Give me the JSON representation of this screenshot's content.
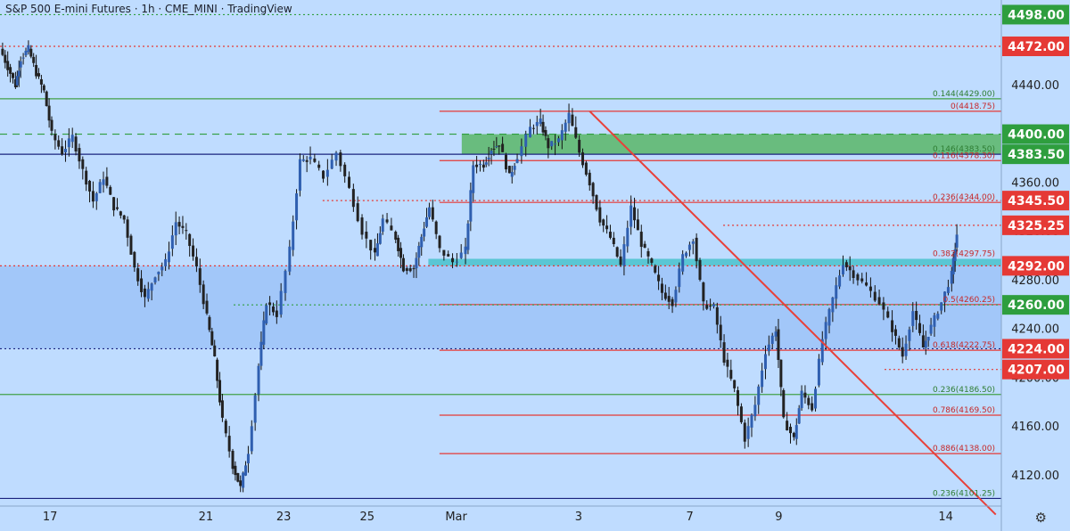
{
  "header": {
    "title": "S&P 500 E-mini Futures · 1h · CME_MINI · TradingView"
  },
  "settings_icon": "⚙",
  "chart_data": {
    "type": "candlestick",
    "ylim": [
      4095,
      4510
    ],
    "x_ticks": [
      {
        "label": "17",
        "t": 0.9
      },
      {
        "label": "21",
        "t": 3.7
      },
      {
        "label": "23",
        "t": 5.1
      },
      {
        "label": "25",
        "t": 6.6
      },
      {
        "label": "Mar",
        "t": 8.2
      },
      {
        "label": "3",
        "t": 10.4
      },
      {
        "label": "7",
        "t": 12.4
      },
      {
        "label": "9",
        "t": 14
      },
      {
        "label": "14",
        "t": 17
      }
    ],
    "y_ticks": [
      4440,
      4400,
      4360,
      4320,
      4280,
      4240,
      4200,
      4160,
      4120
    ],
    "price_badges": [
      {
        "label": "4498.00",
        "value": 4498,
        "color": "#2e9e3e"
      },
      {
        "label": "4472.00",
        "value": 4472,
        "color": "#e53935"
      },
      {
        "label": "4400.00",
        "value": 4400,
        "color": "#2e9e3e"
      },
      {
        "label": "4383.50",
        "value": 4383.5,
        "color": "#2e9e3e"
      },
      {
        "label": "4345.50",
        "value": 4345.5,
        "color": "#e53935"
      },
      {
        "label": "4325.25",
        "value": 4325.25,
        "color": "#e53935"
      },
      {
        "label": "4292.00",
        "value": 4292,
        "color": "#e53935"
      },
      {
        "label": "4260.00",
        "value": 4260,
        "color": "#2e9e3e"
      },
      {
        "label": "4224.00",
        "value": 4224,
        "color": "#e53935"
      },
      {
        "label": "4207.00",
        "value": 4207,
        "color": "#e53935"
      }
    ],
    "fib_labels": [
      {
        "label": "0.144(4429.00)",
        "value": 4429,
        "color": "#2e7d32"
      },
      {
        "label": "0(4418.75)",
        "value": 4418.75,
        "color": "#c62828"
      },
      {
        "label": "0.146(4383.50)",
        "value": 4383.5,
        "color": "#2e7d32"
      },
      {
        "label": "0.116(4378.30)",
        "value": 4378.3,
        "color": "#c62828"
      },
      {
        "label": "0.236(4344.00)",
        "value": 4344,
        "color": "#c62828"
      },
      {
        "label": "0.382(4297.75)",
        "value": 4297.75,
        "color": "#c62828"
      },
      {
        "label": "0.5(4260.25)",
        "value": 4260.25,
        "color": "#c62828"
      },
      {
        "label": "0.618(4222.75)",
        "value": 4222.75,
        "color": "#c62828"
      },
      {
        "label": "0.236(4186.50)",
        "value": 4186.5,
        "color": "#2e7d32"
      },
      {
        "label": "0.786(4169.50)",
        "value": 4169.5,
        "color": "#c62828"
      },
      {
        "label": "0.886(4138.00)",
        "value": 4138,
        "color": "#c62828"
      },
      {
        "label": "0.236(4101.25)",
        "value": 4101.25,
        "color": "#2e7d32"
      }
    ],
    "zones": [
      {
        "from": 4383.5,
        "to": 4400,
        "x_start": 8.3,
        "color": "#5fb870"
      },
      {
        "from": 4292,
        "to": 4297.75,
        "x_start": 7.7,
        "color": "#4fc3cf"
      },
      {
        "from": 4224,
        "to": 4292,
        "x_start": 0,
        "color": "#9ec4f8"
      }
    ],
    "levels": [
      {
        "value": 4498,
        "style": "dotted",
        "color": "#2e9e3e",
        "x_start": 0
      },
      {
        "value": 4472,
        "style": "dotted",
        "color": "#e53935",
        "x_start": 0
      },
      {
        "value": 4429,
        "style": "solid",
        "color": "#43a047",
        "x_start": 0
      },
      {
        "value": 4418.75,
        "style": "solid",
        "color": "#e53935",
        "x_start": 7.9
      },
      {
        "value": 4400,
        "style": "dashed",
        "color": "#2e9e3e",
        "x_start": 0
      },
      {
        "value": 4383.5,
        "style": "solid",
        "color": "#1a237e",
        "x_start": 0
      },
      {
        "value": 4378.3,
        "style": "solid",
        "color": "#e53935",
        "x_start": 7.9
      },
      {
        "value": 4345.5,
        "style": "dotted",
        "color": "#e53935",
        "x_start": 5.8
      },
      {
        "value": 4344,
        "style": "solid",
        "color": "#e53935",
        "x_start": 7.9
      },
      {
        "value": 4325.25,
        "style": "dotted",
        "color": "#e53935",
        "x_start": 13
      },
      {
        "value": 4292,
        "style": "dotted",
        "color": "#e53935",
        "x_start": 0
      },
      {
        "value": 4260.25,
        "style": "solid",
        "color": "#e53935",
        "x_start": 7.9
      },
      {
        "value": 4260,
        "style": "dotted",
        "color": "#2e9e3e",
        "x_start": 4.2
      },
      {
        "value": 4224,
        "style": "dotted",
        "color": "#1a237e",
        "x_start": 0
      },
      {
        "value": 4222.75,
        "style": "solid",
        "color": "#e53935",
        "x_start": 7.9
      },
      {
        "value": 4207,
        "style": "dotted",
        "color": "#e53935",
        "x_start": 15.9
      },
      {
        "value": 4186.5,
        "style": "solid",
        "color": "#43a047",
        "x_start": 0
      },
      {
        "value": 4169.5,
        "style": "solid",
        "color": "#e53935",
        "x_start": 7.9
      },
      {
        "value": 4138,
        "style": "solid",
        "color": "#e53935",
        "x_start": 7.9
      },
      {
        "value": 4101.25,
        "style": "solid",
        "color": "#1a237e",
        "x_start": 0
      }
    ],
    "trendline": {
      "from": [
        10.6,
        4418.75
      ],
      "to": [
        17.9,
        4088
      ],
      "color": "#e8403a"
    },
    "price_path": [
      [
        0,
        4470
      ],
      [
        0.3,
        4455
      ],
      [
        0.6,
        4440
      ],
      [
        0.8,
        4462
      ],
      [
        1.1,
        4470
      ],
      [
        1.4,
        4450
      ],
      [
        1.7,
        4435
      ],
      [
        2.0,
        4400
      ],
      [
        2.4,
        4385
      ],
      [
        2.8,
        4398
      ],
      [
        3.2,
        4370
      ],
      [
        3.6,
        4345
      ],
      [
        4.0,
        4365
      ],
      [
        4.4,
        4340
      ],
      [
        4.8,
        4330
      ],
      [
        5.2,
        4290
      ],
      [
        5.6,
        4265
      ],
      [
        6.0,
        4285
      ],
      [
        6.4,
        4295
      ],
      [
        6.8,
        4328
      ],
      [
        7.2,
        4318
      ],
      [
        7.6,
        4290
      ],
      [
        8.0,
        4250
      ],
      [
        8.3,
        4215
      ],
      [
        8.6,
        4165
      ],
      [
        9.0,
        4128
      ],
      [
        9.3,
        4110
      ],
      [
        9.6,
        4140
      ],
      [
        10.0,
        4210
      ],
      [
        10.3,
        4262
      ],
      [
        10.7,
        4252
      ],
      [
        11.2,
        4305
      ],
      [
        11.6,
        4378
      ],
      [
        12.0,
        4380
      ],
      [
        12.5,
        4365
      ],
      [
        13.0,
        4385
      ],
      [
        13.5,
        4355
      ],
      [
        14.0,
        4320
      ],
      [
        14.5,
        4300
      ],
      [
        14.8,
        4330
      ],
      [
        15.3,
        4315
      ],
      [
        15.6,
        4290
      ],
      [
        16.0,
        4290
      ],
      [
        16.3,
        4316
      ],
      [
        16.6,
        4340
      ],
      [
        17.0,
        4305
      ],
      [
        17.5,
        4295
      ],
      [
        18.0,
        4305
      ],
      [
        18.3,
        4375
      ],
      [
        18.7,
        4375
      ],
      [
        19.0,
        4388
      ],
      [
        19.3,
        4392
      ],
      [
        19.7,
        4365
      ],
      [
        20.0,
        4382
      ],
      [
        20.5,
        4405
      ],
      [
        20.9,
        4410
      ],
      [
        21.2,
        4390
      ],
      [
        21.6,
        4395
      ],
      [
        22.0,
        4416
      ],
      [
        22.4,
        4385
      ],
      [
        22.8,
        4360
      ],
      [
        23.2,
        4330
      ],
      [
        23.6,
        4315
      ],
      [
        24.0,
        4292
      ],
      [
        24.4,
        4340
      ],
      [
        24.8,
        4310
      ],
      [
        25.2,
        4292
      ],
      [
        25.6,
        4270
      ],
      [
        26.0,
        4262
      ],
      [
        26.4,
        4300
      ],
      [
        26.8,
        4315
      ],
      [
        27.2,
        4260
      ],
      [
        27.6,
        4258
      ],
      [
        28.0,
        4215
      ],
      [
        28.4,
        4190
      ],
      [
        28.8,
        4150
      ],
      [
        29.2,
        4178
      ],
      [
        29.6,
        4222
      ],
      [
        30.0,
        4240
      ],
      [
        30.3,
        4165
      ],
      [
        30.7,
        4150
      ],
      [
        31.0,
        4188
      ],
      [
        31.4,
        4175
      ],
      [
        31.8,
        4232
      ],
      [
        32.2,
        4265
      ],
      [
        32.6,
        4295
      ],
      [
        33.0,
        4285
      ],
      [
        33.5,
        4275
      ],
      [
        34.0,
        4262
      ],
      [
        34.5,
        4240
      ],
      [
        34.9,
        4218
      ],
      [
        35.3,
        4255
      ],
      [
        35.7,
        4225
      ],
      [
        36.0,
        4242
      ],
      [
        36.4,
        4262
      ],
      [
        36.8,
        4285
      ],
      [
        37.0,
        4318
      ]
    ]
  }
}
